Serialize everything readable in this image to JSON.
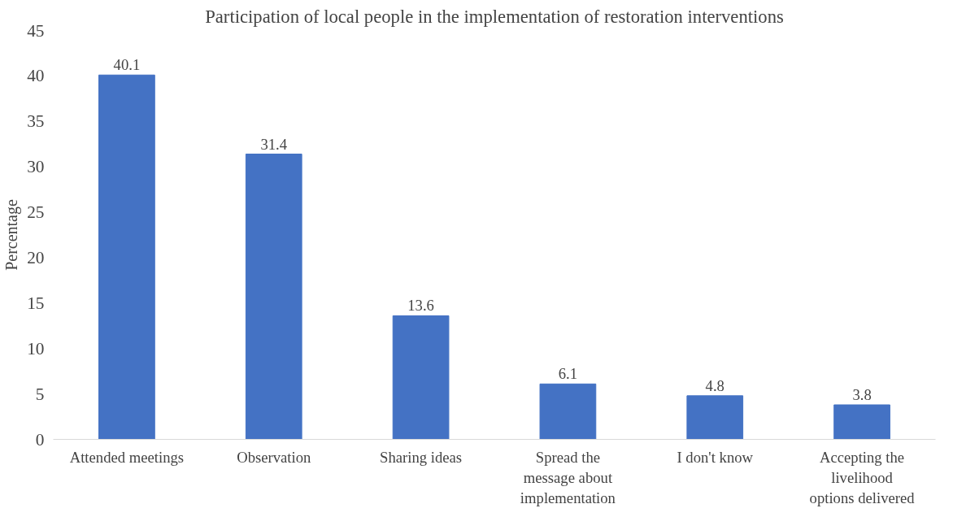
{
  "chart_data": {
    "type": "bar",
    "title": "Participation of local people in the implementation of restoration interventions",
    "ylabel": "Percentage",
    "categories": [
      "Attended meetings",
      "Observation",
      "Sharing ideas",
      "Spread the message about implementation",
      "I don't know",
      "Accepting the livelihood options delivered"
    ],
    "values": [
      40.1,
      31.4,
      13.6,
      6.1,
      4.8,
      3.8
    ],
    "color": "#4472c4",
    "data_labels": true,
    "ylim": [
      0,
      45
    ],
    "yticks": [
      0,
      5,
      10,
      15,
      20,
      25,
      30,
      35,
      40,
      45
    ],
    "grid": false
  }
}
